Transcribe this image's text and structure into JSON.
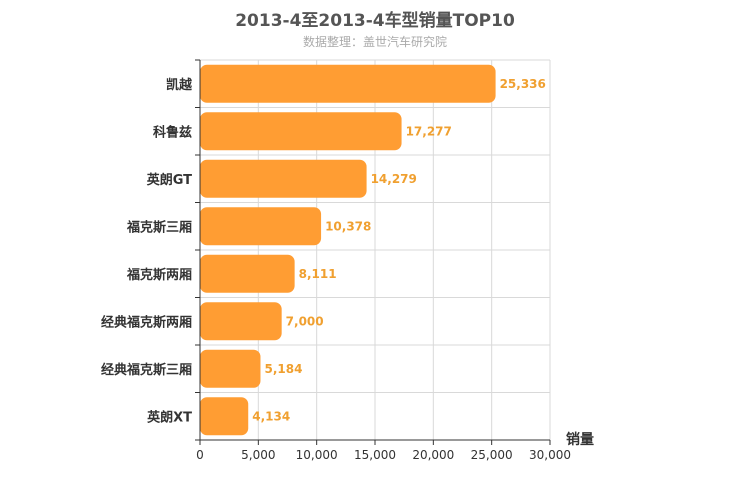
{
  "chart_data": {
    "type": "bar",
    "orientation": "horizontal",
    "title": "2013-4至2013-4车型销量TOP10",
    "subtitle": "数据整理：盖世汽车研究院",
    "categories": [
      "凯越",
      "科鲁兹",
      "英朗GT",
      "福克斯三厢",
      "福克斯两厢",
      "经典福克斯两厢",
      "经典福克斯三厢",
      "英朗XT"
    ],
    "values": [
      25336,
      17277,
      14279,
      10378,
      8111,
      7000,
      5184,
      4134
    ],
    "value_labels": [
      "25,336",
      "17,277",
      "14,279",
      "10,378",
      "8,111",
      "7,000",
      "5,184",
      "4,134"
    ],
    "xlabel": "销量",
    "ylabel": "",
    "xlim": [
      0,
      30000
    ],
    "ticks": [
      0,
      5000,
      10000,
      15000,
      20000,
      25000,
      30000
    ],
    "tick_labels": [
      "0",
      "5,000",
      "10,000",
      "15,000",
      "20,000",
      "25,000",
      "30,000"
    ],
    "grid": true,
    "legend": "none",
    "colors": {
      "bar": "#ff9d33",
      "data_label": "#f0a030",
      "grid": "#d9d9d9",
      "axis": "#333333"
    }
  }
}
